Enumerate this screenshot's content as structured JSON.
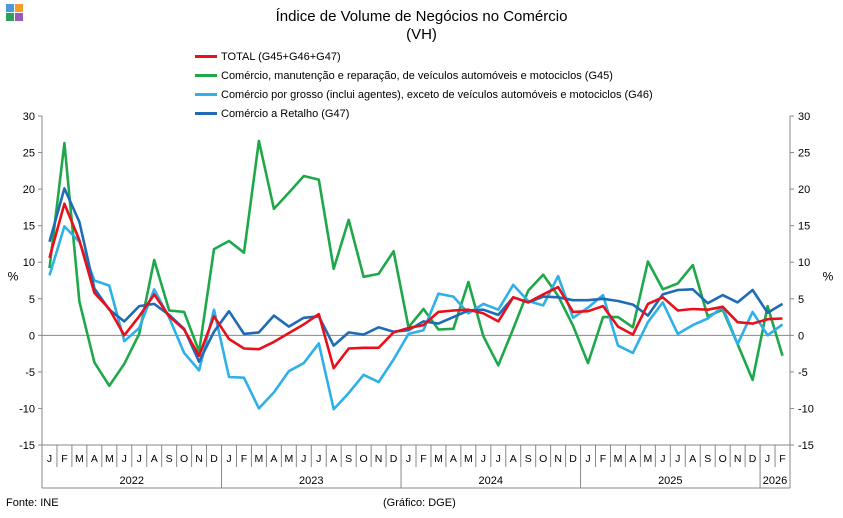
{
  "chart_data": {
    "type": "line",
    "title": "Índice de Volume de Negócios no Comércio",
    "subtitle": "(VH)",
    "ylabel_left": "%",
    "ylabel_right": "%",
    "ylim": [
      -15,
      30
    ],
    "yticks": [
      -15,
      -10,
      -5,
      0,
      5,
      10,
      15,
      20,
      25,
      30
    ],
    "grid": false,
    "legend_position": "top",
    "month_labels": [
      "J",
      "F",
      "M",
      "A",
      "M",
      "J",
      "J",
      "A",
      "S",
      "O",
      "N",
      "D",
      "J",
      "F",
      "M",
      "A",
      "M",
      "J",
      "J",
      "A",
      "S",
      "O",
      "N",
      "D",
      "J",
      "F",
      "M",
      "A",
      "M",
      "J",
      "J",
      "A",
      "S",
      "O",
      "N",
      "D",
      "J",
      "F",
      "M",
      "A",
      "M",
      "J",
      "J",
      "A",
      "S",
      "O",
      "N",
      "D",
      "J",
      "F"
    ],
    "years": [
      {
        "label": "2022",
        "start": 0,
        "end": 12
      },
      {
        "label": "2023",
        "start": 12,
        "end": 24
      },
      {
        "label": "2024",
        "start": 24,
        "end": 36
      },
      {
        "label": "2025",
        "start": 36,
        "end": 48
      },
      {
        "label": "2026",
        "start": 48,
        "end": 50
      }
    ],
    "series": [
      {
        "name": "TOTAL (G45+G46+G47)",
        "color": "#e8101a",
        "values": [
          10.6,
          18.0,
          13.0,
          5.8,
          3.6,
          0.0,
          2.6,
          5.6,
          2.6,
          0.8,
          -2.8,
          2.6,
          -0.5,
          -1.8,
          -1.9,
          -0.9,
          0.3,
          1.5,
          2.9,
          -4.5,
          -1.8,
          -1.7,
          -1.7,
          0.4,
          1.0,
          1.4,
          3.2,
          3.4,
          3.5,
          3.0,
          1.9,
          5.2,
          4.5,
          5.6,
          6.6,
          3.2,
          3.3,
          4.0,
          1.2,
          0.1,
          4.3,
          5.2,
          3.4,
          3.6,
          3.5,
          3.9,
          1.8,
          1.6,
          2.2,
          2.3
        ]
      },
      {
        "name": "Comércio, manutenção e reparação, de veículos automóveis e motociclos (G45)",
        "color": "#1fa84a",
        "values": [
          9.2,
          26.3,
          4.6,
          -3.7,
          -6.9,
          -3.9,
          0.2,
          10.3,
          3.4,
          3.2,
          -2.2,
          11.8,
          12.9,
          11.3,
          26.6,
          17.3,
          19.5,
          21.8,
          21.3,
          9.1,
          15.8,
          8.0,
          8.4,
          11.5,
          1.1,
          3.6,
          0.8,
          0.9,
          7.3,
          -0.1,
          -4.1,
          0.9,
          6.1,
          8.3,
          5.4,
          1.3,
          -3.8,
          2.5,
          2.5,
          1.1,
          10.1,
          6.3,
          7.1,
          9.6,
          2.6,
          3.5,
          -1.2,
          -6.1,
          4.0,
          -2.8
        ]
      },
      {
        "name": "Comércio por grosso (inclui agentes), exceto de veículos automóveis e motociclos (G46)",
        "color": "#2eb0e8",
        "values": [
          8.2,
          14.9,
          12.8,
          7.5,
          6.8,
          -0.8,
          1.0,
          6.3,
          2.4,
          -2.4,
          -4.8,
          3.5,
          -5.7,
          -5.8,
          -10.0,
          -7.8,
          -4.9,
          -3.8,
          -1.1,
          -10.1,
          -7.9,
          -5.4,
          -6.4,
          -3.3,
          0.2,
          0.7,
          5.7,
          5.3,
          3.0,
          4.3,
          3.5,
          6.9,
          4.7,
          4.1,
          8.1,
          2.4,
          3.8,
          5.5,
          -1.4,
          -2.4,
          1.8,
          4.5,
          0.2,
          1.4,
          2.3,
          3.9,
          -1.2,
          3.2,
          0.0,
          1.5
        ]
      },
      {
        "name": "Comércio a Retalho (G47)",
        "color": "#1f6bb6",
        "values": [
          12.8,
          20.1,
          15.5,
          6.4,
          3.5,
          1.9,
          4.0,
          4.3,
          2.8,
          0.9,
          -3.6,
          0.5,
          3.3,
          0.2,
          0.4,
          2.7,
          1.2,
          2.4,
          2.6,
          -1.4,
          0.4,
          0.1,
          1.1,
          0.5,
          0.7,
          1.9,
          1.6,
          2.5,
          3.4,
          3.5,
          2.8,
          5.2,
          4.5,
          5.3,
          5.2,
          4.8,
          4.8,
          5.0,
          4.7,
          4.2,
          2.7,
          5.6,
          6.2,
          6.3,
          4.4,
          5.5,
          4.5,
          6.2,
          3.1,
          4.3
        ]
      }
    ]
  },
  "source": "Fonte: INE",
  "credit": "(Gráfico: DGE)",
  "logo_colors": [
    "#4a9ad6",
    "#f39c2b",
    "#2e9e5b",
    "#9b59b6"
  ]
}
